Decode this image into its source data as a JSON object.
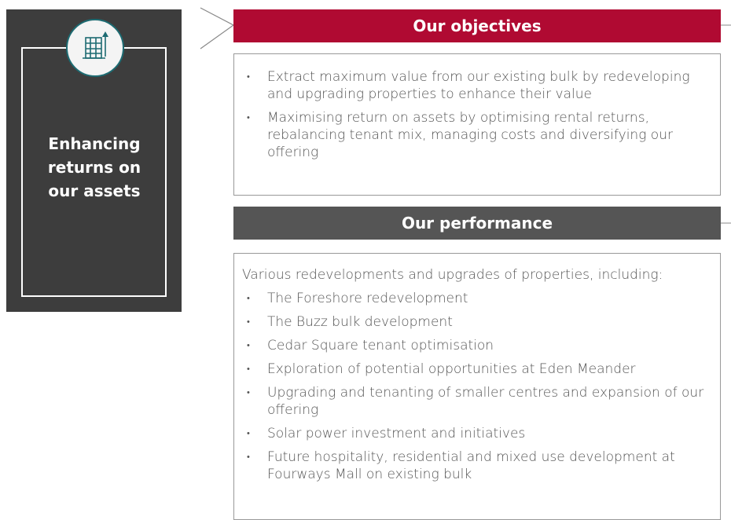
{
  "sidebar": {
    "title": "Enhancing returns on our assets"
  },
  "objectives": {
    "heading": "Our objectives",
    "items": [
      "Extract maximum value from our existing bulk by redeveloping and upgrading properties to enhance their value",
      "Maximising return on assets by optimising rental returns, rebalancing tenant mix, managing costs and diversifying our offering"
    ]
  },
  "performance": {
    "heading": "Our performance",
    "intro": "Various redevelopments and upgrades of properties, including:",
    "items": [
      "The Foreshore redevelopment",
      "The Buzz bulk development",
      "Cedar Square tenant optimisation",
      "Exploration of potential opportunities at Eden Meander",
      "Upgrading and tenanting of smaller centres and expansion of our offering",
      "Solar power investment and initiatives",
      "Future hospitality, residential and mixed use development at Fourways Mall on existing bulk"
    ]
  }
}
